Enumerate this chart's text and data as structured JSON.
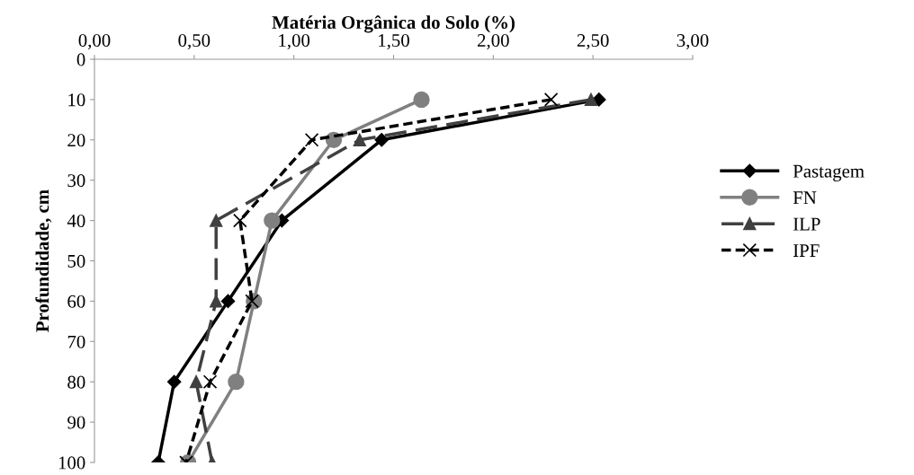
{
  "chart_data": {
    "type": "line",
    "xlabel": "Matéria Orgânica do Solo (%)",
    "ylabel": "Profundidade, cm",
    "xlim": [
      0,
      3
    ],
    "xticks": [
      {
        "value": 0,
        "label": "0,00"
      },
      {
        "value": 0.5,
        "label": "0,50"
      },
      {
        "value": 1,
        "label": "1,00"
      },
      {
        "value": 1.5,
        "label": "1,50"
      },
      {
        "value": 2,
        "label": "2,00"
      },
      {
        "value": 2.5,
        "label": "2,50"
      },
      {
        "value": 3,
        "label": "3,00"
      }
    ],
    "ylim": [
      100,
      0
    ],
    "yticks": [
      0,
      10,
      20,
      30,
      40,
      50,
      60,
      70,
      80,
      90,
      100
    ],
    "grid": false,
    "legend": "right",
    "series": [
      {
        "name": "Pastagem",
        "color": "#000000",
        "marker": "diamond",
        "line_style": "solid",
        "x": [
          2.53,
          1.44,
          0.94,
          0.67,
          0.4,
          0.32
        ],
        "values": [
          10,
          20,
          40,
          60,
          80,
          100
        ]
      },
      {
        "name": "FN",
        "color": "#808080",
        "marker": "circle",
        "line_style": "solid",
        "x": [
          1.64,
          1.2,
          0.89,
          0.8,
          0.71,
          0.47
        ],
        "values": [
          10,
          20,
          40,
          60,
          80,
          100
        ]
      },
      {
        "name": "ILP",
        "color": "#404040",
        "marker": "triangle",
        "line_style": "longdash",
        "x": [
          2.49,
          1.33,
          0.61,
          0.61,
          0.51,
          0.59
        ],
        "values": [
          10,
          20,
          40,
          60,
          80,
          100
        ]
      },
      {
        "name": "IPF",
        "color": "#000000",
        "marker": "cross",
        "line_style": "dashed",
        "x": [
          2.29,
          1.09,
          0.73,
          0.79,
          0.58,
          0.46
        ],
        "values": [
          10,
          20,
          40,
          60,
          80,
          100
        ]
      }
    ]
  }
}
